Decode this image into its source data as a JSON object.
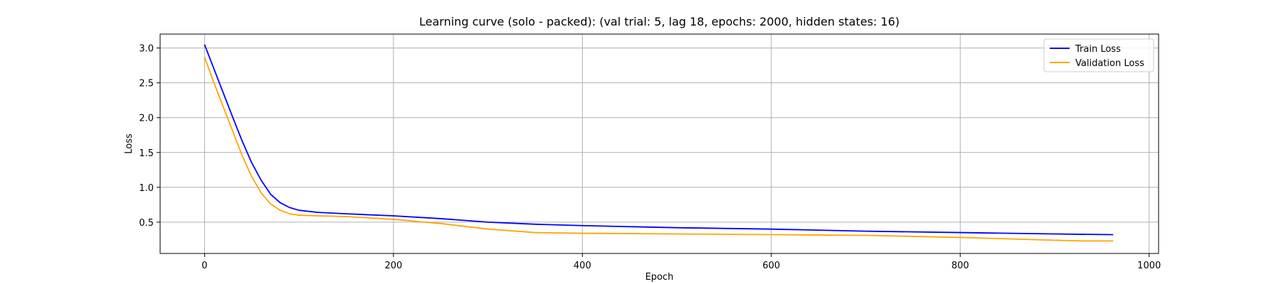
{
  "chart_data": {
    "type": "line",
    "title": "Learning curve (solo - packed): (val trial: 5, lag 18, epochs: 2000, hidden states: 16)",
    "xlabel": "Epoch",
    "ylabel": "Loss",
    "xlim": [
      -47,
      1010
    ],
    "ylim": [
      0.05,
      3.2
    ],
    "xticks": [
      0,
      200,
      400,
      600,
      800,
      1000
    ],
    "yticks": [
      0.5,
      1.0,
      1.5,
      2.0,
      2.5,
      3.0
    ],
    "xtick_labels": [
      "0",
      "200",
      "400",
      "600",
      "800",
      "1000"
    ],
    "ytick_labels": [
      "0.5",
      "1.0",
      "1.5",
      "2.0",
      "2.5",
      "3.0"
    ],
    "grid": true,
    "legend_position": "top-right",
    "series": [
      {
        "name": "Train Loss",
        "color": "#0000ff",
        "x": [
          0,
          10,
          20,
          30,
          40,
          50,
          60,
          70,
          80,
          90,
          100,
          120,
          150,
          200,
          250,
          300,
          350,
          400,
          500,
          600,
          700,
          800,
          900,
          962
        ],
        "y": [
          3.05,
          2.7,
          2.35,
          2.0,
          1.66,
          1.35,
          1.1,
          0.9,
          0.78,
          0.71,
          0.67,
          0.64,
          0.62,
          0.59,
          0.55,
          0.5,
          0.47,
          0.45,
          0.42,
          0.4,
          0.37,
          0.35,
          0.33,
          0.32
        ]
      },
      {
        "name": "Validation Loss",
        "color": "#ffa500",
        "x": [
          0,
          10,
          20,
          30,
          40,
          50,
          60,
          70,
          80,
          90,
          100,
          120,
          150,
          200,
          250,
          300,
          350,
          400,
          500,
          600,
          700,
          800,
          850,
          900,
          930,
          962
        ],
        "y": [
          2.87,
          2.5,
          2.15,
          1.8,
          1.45,
          1.15,
          0.92,
          0.76,
          0.67,
          0.62,
          0.6,
          0.59,
          0.58,
          0.54,
          0.48,
          0.4,
          0.35,
          0.34,
          0.33,
          0.32,
          0.31,
          0.28,
          0.26,
          0.24,
          0.23,
          0.23
        ]
      }
    ]
  }
}
